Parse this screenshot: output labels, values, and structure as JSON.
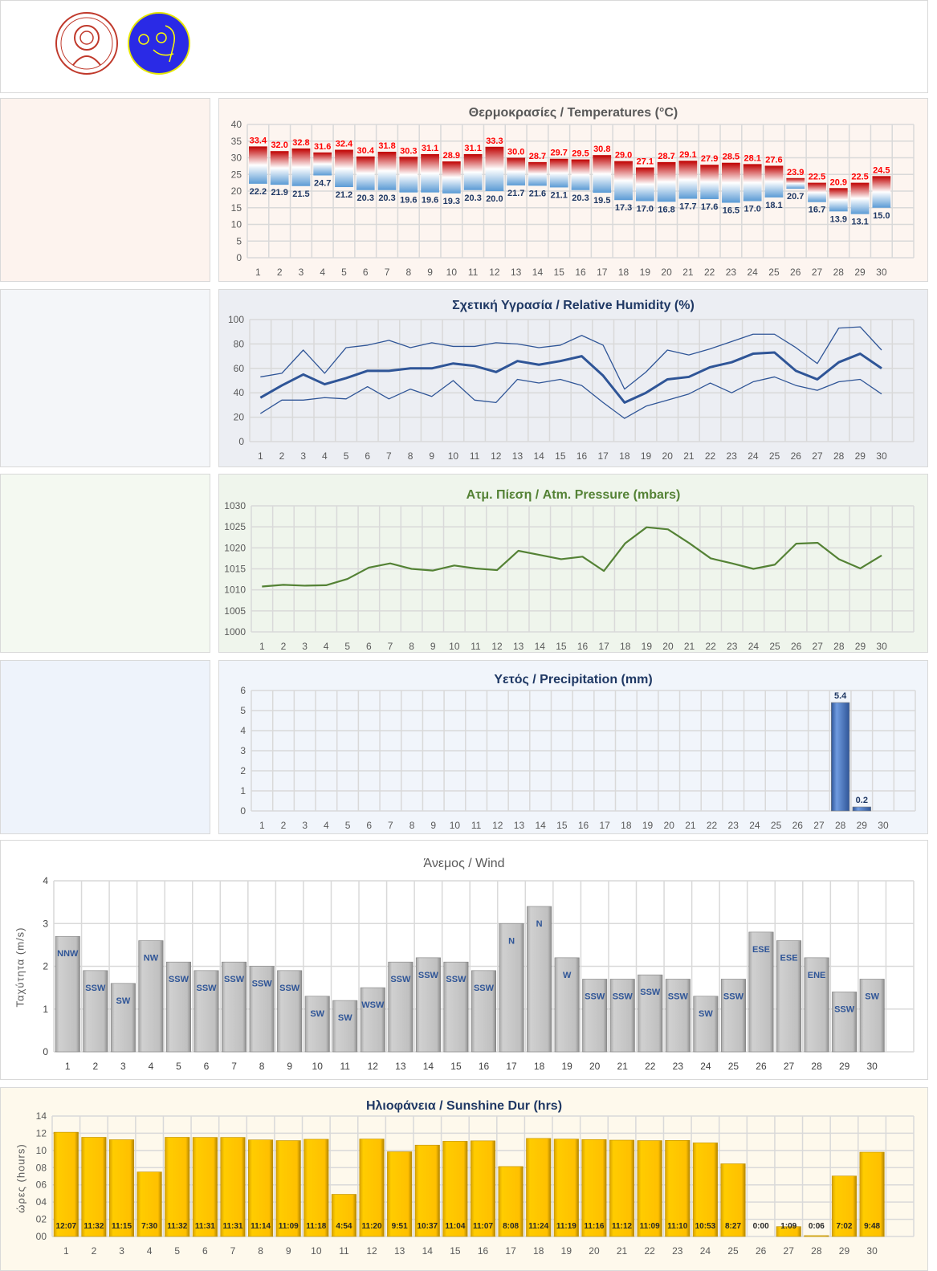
{
  "header": {
    "logos": [
      "university-seal",
      "meteorology-logo"
    ]
  },
  "chart_data": [
    {
      "type": "floating-bar",
      "title": "Θερμοκρασίες / Temperatures (°C)",
      "categories": [
        "1",
        "2",
        "3",
        "4",
        "5",
        "6",
        "7",
        "8",
        "9",
        "10",
        "11",
        "12",
        "13",
        "14",
        "15",
        "16",
        "17",
        "18",
        "19",
        "20",
        "21",
        "22",
        "23",
        "24",
        "25",
        "26",
        "27",
        "28",
        "29",
        "30"
      ],
      "ylim": [
        0,
        40
      ],
      "yticks": [
        "0",
        "5",
        "10",
        "15",
        "20",
        "25",
        "30",
        "35",
        "40"
      ],
      "series": [
        {
          "name": "max",
          "color": "#ff0000",
          "values": [
            33.4,
            32.0,
            32.8,
            31.6,
            32.4,
            30.4,
            31.8,
            30.3,
            31.1,
            28.9,
            31.1,
            33.3,
            30.0,
            28.7,
            29.7,
            29.5,
            30.8,
            29.0,
            27.1,
            28.7,
            29.1,
            27.9,
            28.5,
            28.1,
            27.6,
            23.9,
            22.5,
            20.9,
            22.5,
            24.5
          ]
        },
        {
          "name": "min",
          "color": "#1f3864",
          "values": [
            22.2,
            21.9,
            21.5,
            24.7,
            21.2,
            20.3,
            20.3,
            19.6,
            19.6,
            19.3,
            20.3,
            20.0,
            21.7,
            21.6,
            21.1,
            20.3,
            19.5,
            17.3,
            17.0,
            16.8,
            17.7,
            17.6,
            16.5,
            17.0,
            18.1,
            20.7,
            16.7,
            13.9,
            13.1,
            15.0
          ]
        }
      ],
      "labels_max": [
        "33.4",
        "32.0",
        "32.8",
        "31.6",
        "32.4",
        "30.4",
        "31.8",
        "30.3",
        "31.1",
        "28.9",
        "31.1",
        "33.3",
        "30.0",
        "28.7",
        "29.7",
        "29.5",
        "30.8",
        "29.0",
        "27.1",
        "28.7",
        "29.1",
        "27.9",
        "28.5",
        "28.1",
        "27.6",
        "23.9",
        "22.5",
        "20.9",
        "22.5",
        "24.5"
      ],
      "labels_min": [
        "22.2",
        "21.9",
        "21.5",
        "24.7",
        "21.2",
        "20.3",
        "20.3",
        "19.6",
        "19.6",
        "19.3",
        "20.3",
        "20.0",
        "21.7",
        "21.6",
        "21.1",
        "20.3",
        "19.5",
        "17.3",
        "17.0",
        "16.8",
        "17.7",
        "17.6",
        "16.5",
        "17.0",
        "18.1",
        "20.7",
        "16.7",
        "13.9",
        "13.1",
        "15.0"
      ]
    },
    {
      "type": "line",
      "title": "Σχετική Υγρασία / Relative Humidity (%)",
      "categories": [
        "1",
        "2",
        "3",
        "4",
        "5",
        "6",
        "7",
        "8",
        "9",
        "10",
        "11",
        "12",
        "13",
        "14",
        "15",
        "16",
        "17",
        "18",
        "19",
        "20",
        "21",
        "22",
        "23",
        "24",
        "25",
        "26",
        "27",
        "28",
        "29",
        "30"
      ],
      "ylim": [
        0,
        100
      ],
      "yticks": [
        "0",
        "20",
        "40",
        "60",
        "80",
        "100"
      ],
      "series": [
        {
          "name": "max",
          "color": "#2f5597",
          "width": 1.3,
          "values": [
            53,
            56,
            75,
            56,
            77,
            79,
            83,
            77,
            81,
            78,
            78,
            81,
            80,
            77,
            79,
            87,
            79,
            43,
            57,
            75,
            71,
            76,
            82,
            88,
            88,
            77,
            64,
            93,
            94,
            75
          ]
        },
        {
          "name": "mean",
          "color": "#2f5597",
          "width": 3,
          "values": [
            36,
            46,
            55,
            47,
            52,
            58,
            58,
            60,
            60,
            64,
            62,
            57,
            66,
            63,
            66,
            70,
            54,
            32,
            40,
            51,
            53,
            61,
            65,
            72,
            73,
            58,
            51,
            65,
            72,
            60
          ]
        },
        {
          "name": "min",
          "color": "#2f5597",
          "width": 1.3,
          "values": [
            23,
            34,
            34,
            36,
            35,
            45,
            35,
            43,
            37,
            50,
            34,
            32,
            51,
            48,
            51,
            46,
            32,
            19,
            29,
            34,
            39,
            48,
            40,
            49,
            53,
            46,
            42,
            49,
            51,
            39
          ]
        }
      ]
    },
    {
      "type": "line",
      "title": "Ατμ. Πίεση / Atm. Pressure (mbars)",
      "categories": [
        "1",
        "2",
        "3",
        "4",
        "5",
        "6",
        "7",
        "8",
        "9",
        "10",
        "11",
        "12",
        "13",
        "14",
        "15",
        "16",
        "17",
        "18",
        "19",
        "20",
        "21",
        "22",
        "23",
        "24",
        "25",
        "26",
        "27",
        "28",
        "29",
        "30"
      ],
      "ylim": [
        1000,
        1030
      ],
      "yticks": [
        "1000",
        "1005",
        "1010",
        "1015",
        "1020",
        "1025",
        "1030"
      ],
      "series": [
        {
          "name": "pressure",
          "color": "#548235",
          "width": 2.2,
          "values": [
            1010.8,
            1011.2,
            1011.0,
            1011.1,
            1012.6,
            1015.3,
            1016.3,
            1015.0,
            1014.6,
            1015.8,
            1015.1,
            1014.7,
            1019.3,
            1018.3,
            1017.3,
            1017.9,
            1014.5,
            1021.1,
            1024.9,
            1024.4,
            1021.1,
            1017.5,
            1016.3,
            1015.0,
            1016.0,
            1021.0,
            1021.2,
            1017.3,
            1015.1,
            1018.2
          ]
        }
      ]
    },
    {
      "type": "bar",
      "title": "Υετός / Precipitation (mm)",
      "categories": [
        "1",
        "2",
        "3",
        "4",
        "5",
        "6",
        "7",
        "8",
        "9",
        "10",
        "11",
        "12",
        "13",
        "14",
        "15",
        "16",
        "17",
        "18",
        "19",
        "20",
        "21",
        "22",
        "23",
        "24",
        "25",
        "26",
        "27",
        "28",
        "29",
        "30"
      ],
      "ylim": [
        0,
        6
      ],
      "yticks": [
        "0",
        "1",
        "2",
        "3",
        "4",
        "5",
        "6"
      ],
      "series": [
        {
          "name": "precipitation",
          "color": "#4472c4",
          "values": [
            0,
            0,
            0,
            0,
            0,
            0,
            0,
            0,
            0,
            0,
            0,
            0,
            0,
            0,
            0,
            0,
            0,
            0,
            0,
            0,
            0,
            0,
            0,
            0,
            0,
            0,
            0,
            5.4,
            0.2,
            0
          ]
        }
      ],
      "labels": [
        "",
        "",
        "",
        "",
        "",
        "",
        "",
        "",
        "",
        "",
        "",
        "",
        "",
        "",
        "",
        "",
        "",
        "",
        "",
        "",
        "",
        "",
        "",
        "",
        "",
        "",
        "",
        "5.4",
        "0.2",
        ""
      ]
    },
    {
      "type": "bar",
      "title": "Άνεμος / Wind",
      "ylabel": "Ταχύτητα  (m/s)",
      "categories": [
        "1",
        "2",
        "3",
        "4",
        "5",
        "6",
        "7",
        "8",
        "9",
        "10",
        "11",
        "12",
        "13",
        "14",
        "15",
        "16",
        "17",
        "18",
        "19",
        "20",
        "21",
        "22",
        "23",
        "24",
        "25",
        "26",
        "27",
        "28",
        "29",
        "30"
      ],
      "ylim": [
        0,
        4
      ],
      "yticks": [
        "0",
        "1",
        "2",
        "3",
        "4"
      ],
      "series": [
        {
          "name": "speed",
          "color": "#bfbfbf",
          "values": [
            2.7,
            1.9,
            1.6,
            2.6,
            2.1,
            1.9,
            2.1,
            2.0,
            1.9,
            1.3,
            1.2,
            1.5,
            2.1,
            2.2,
            2.1,
            1.9,
            3.0,
            3.4,
            2.2,
            1.7,
            1.7,
            1.8,
            1.7,
            1.3,
            1.7,
            2.8,
            2.6,
            2.2,
            1.4,
            1.7
          ]
        }
      ],
      "labels": [
        "NNW",
        "SSW",
        "SW",
        "NW",
        "SSW",
        "SSW",
        "SSW",
        "SSW",
        "SSW",
        "SW",
        "SW",
        "WSW",
        "SSW",
        "SSW",
        "SSW",
        "SSW",
        "N",
        "N",
        "W",
        "SSW",
        "SSW",
        "SSW",
        "SSW",
        "SW",
        "SSW",
        "ESE",
        "ESE",
        "ENE",
        "SSW",
        "SW"
      ]
    },
    {
      "type": "bar",
      "title": "Ηλιοφάνεια / Sunshine Dur (hrs)",
      "ylabel": "ώρες (hours)",
      "categories": [
        "1",
        "2",
        "3",
        "4",
        "5",
        "6",
        "7",
        "8",
        "9",
        "10",
        "11",
        "12",
        "13",
        "14",
        "15",
        "16",
        "17",
        "18",
        "19",
        "20",
        "21",
        "22",
        "23",
        "24",
        "25",
        "26",
        "27",
        "28",
        "29",
        "30"
      ],
      "ylim": [
        0,
        14
      ],
      "yticks": [
        "00",
        "02",
        "04",
        "06",
        "08",
        "10",
        "12",
        "14"
      ],
      "series": [
        {
          "name": "sunshine",
          "color": "#ffc000",
          "values": [
            12.12,
            11.53,
            11.25,
            7.5,
            11.53,
            11.52,
            11.52,
            11.23,
            11.15,
            11.3,
            4.9,
            11.33,
            9.85,
            10.62,
            11.07,
            11.12,
            8.13,
            11.4,
            11.32,
            11.27,
            11.2,
            11.15,
            11.17,
            10.88,
            8.45,
            0,
            1.15,
            0.1,
            7.03,
            9.8
          ]
        }
      ],
      "labels": [
        "12:07",
        "11:32",
        "11:15",
        "7:30",
        "11:32",
        "11:31",
        "11:31",
        "11:14",
        "11:09",
        "11:18",
        "4:54",
        "11:20",
        "9:51",
        "10:37",
        "11:04",
        "11:07",
        "8:08",
        "11:24",
        "11:19",
        "11:16",
        "11:12",
        "11:09",
        "11:10",
        "10:53",
        "8:27",
        "0:00",
        "1:09",
        "0:06",
        "7:02",
        "9:48"
      ]
    }
  ]
}
